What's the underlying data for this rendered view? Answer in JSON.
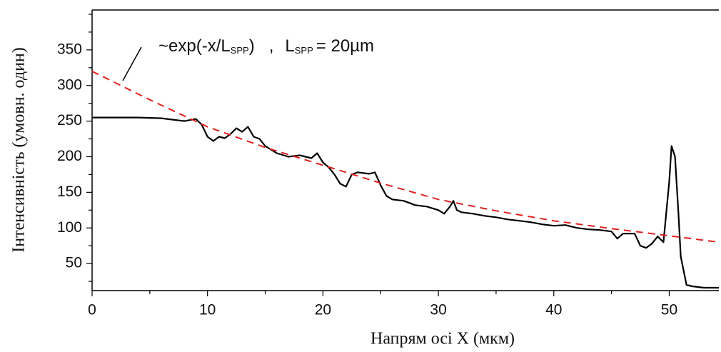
{
  "chart_data": {
    "type": "line",
    "xlabel": "Напрям осі X (мкм)",
    "ylabel": "Інтенсивність (умовн. один)",
    "annotation": {
      "fit": "~exp(-x/L",
      "fit_sub": "SPP",
      "fit_end": ")",
      "sep": ",",
      "param": "L",
      "param_sub": "SPP",
      "param_value": "= 20µm"
    },
    "xlim": [
      0,
      54.3
    ],
    "ylim": [
      12,
      406
    ],
    "xticks": [
      0,
      10,
      20,
      30,
      40,
      50
    ],
    "yticks": [
      50,
      100,
      150,
      200,
      250,
      300,
      350
    ],
    "xticks_minor": [
      5,
      15,
      25,
      35,
      45
    ],
    "yticks_minor": [
      25,
      75,
      125,
      175,
      225,
      275,
      325,
      375,
      400
    ],
    "series": [
      {
        "color": "#000000",
        "dash": false,
        "x": [
          0,
          2,
          4,
          6,
          7,
          8,
          9,
          9.5,
          10,
          10.5,
          11,
          11.5,
          12,
          12.5,
          13,
          13.5,
          14,
          14.5,
          15,
          16,
          17,
          18,
          19,
          19.5,
          20,
          20.5,
          21,
          21.5,
          22,
          22.5,
          23,
          24,
          24.5,
          25,
          25.5,
          26,
          27,
          28,
          29,
          30,
          30.5,
          31,
          31.3,
          31.6,
          32,
          33,
          34,
          35,
          36,
          37,
          38,
          39,
          40,
          41,
          42,
          43,
          44,
          45,
          45.5,
          46,
          47,
          47.5,
          48,
          48.5,
          49,
          49.5,
          50,
          50.2,
          50.5,
          50.8,
          51,
          51.5,
          52,
          53,
          54.3
        ],
        "values": [
          255,
          255,
          255,
          254,
          252,
          250,
          253,
          245,
          228,
          222,
          228,
          226,
          232,
          240,
          235,
          242,
          228,
          225,
          215,
          205,
          200,
          202,
          198,
          205,
          192,
          185,
          175,
          162,
          158,
          175,
          178,
          176,
          178,
          160,
          145,
          140,
          138,
          132,
          130,
          125,
          120,
          130,
          138,
          125,
          122,
          120,
          117,
          115,
          112,
          110,
          108,
          105,
          103,
          104,
          100,
          98,
          97,
          95,
          85,
          92,
          92,
          75,
          72,
          78,
          88,
          80,
          165,
          215,
          200,
          120,
          60,
          20,
          18,
          16,
          16
        ]
      },
      {
        "color": "#e02020",
        "dash": true,
        "x": [
          0,
          5,
          10,
          15,
          20,
          25,
          30,
          35,
          40,
          45,
          50,
          54.3
        ],
        "values": [
          320,
          280,
          242,
          213,
          188,
          163,
          140,
          124,
          110,
          99,
          89,
          80
        ]
      }
    ]
  }
}
